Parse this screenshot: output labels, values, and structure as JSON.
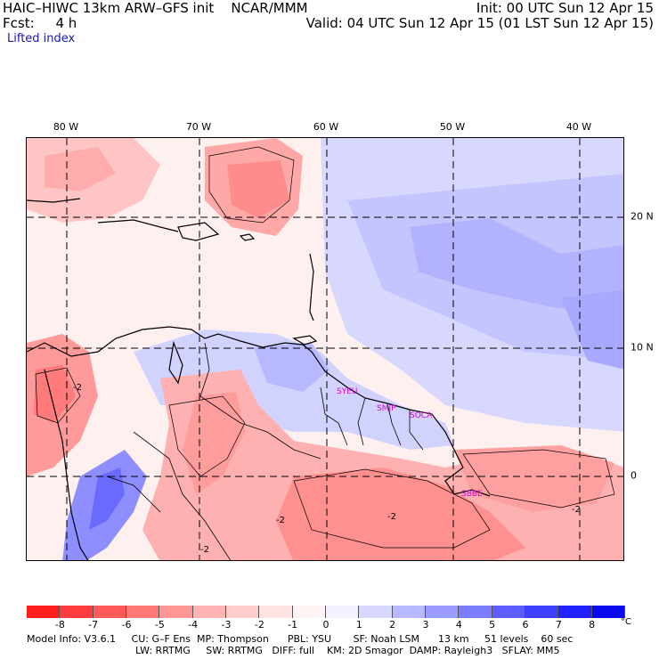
{
  "header": {
    "title_left": "HAIC–HIWC 13km ARW–GFS init    NCAR/MMM",
    "forecast": "Fcst:     4 h",
    "init": "Init: 00 UTC Sun 12 Apr 15",
    "valid": "Valid: 04 UTC Sun 12 Apr 15 (01 LST Sun 12 Apr 15)",
    "field": "Lifted index"
  },
  "map": {
    "lon_labels": [
      "80 W",
      "70 W",
      "60 W",
      "50 W",
      "40 W"
    ],
    "lat_labels": [
      "20 N",
      "10 N",
      "0"
    ],
    "stations": [
      "SYEU",
      "SMJP",
      "SOCA",
      "SBBE"
    ],
    "contour_labels": [
      "-2",
      "-2",
      "-2",
      "-2",
      "-2"
    ]
  },
  "colorbar": {
    "labels": [
      "-8",
      "-7",
      "-6",
      "-5",
      "-4",
      "-3",
      "-2",
      "-1",
      "0",
      "1",
      "2",
      "3",
      "4",
      "5",
      "6",
      "7",
      "8"
    ],
    "unit": "°C",
    "colors": [
      "#ff1e1e",
      "#ff3c3c",
      "#ff5a5a",
      "#ff7878",
      "#ff9696",
      "#ffb4b4",
      "#ffcccc",
      "#ffe2e2",
      "#fff4f4",
      "#f2f2ff",
      "#d6d6ff",
      "#b8b8ff",
      "#9a9aff",
      "#7c7cff",
      "#5e5eff",
      "#4040ff",
      "#2222ff",
      "#0a0aee"
    ]
  },
  "footer": {
    "line1": "Model Info: V3.6.1     CU: G–F Ens  MP: Thompson      PBL: YSU       SF: Noah LSM      13 km     51 levels    60 sec",
    "line2": "LW: RRTMG     SW: RRTMG   DIFF: full    KM: 2D Smagor  DAMP: Rayleigh3   SFLAY: MM5"
  }
}
